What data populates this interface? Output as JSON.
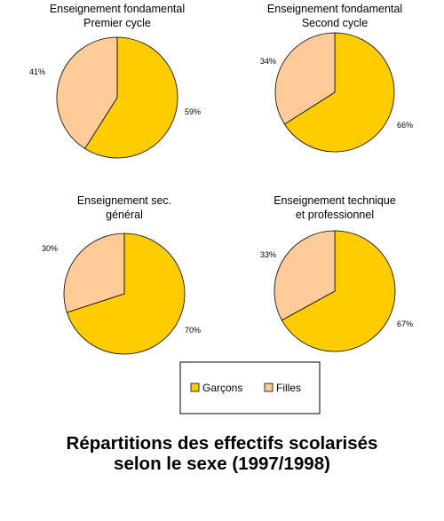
{
  "chart_data": [
    {
      "type": "pie",
      "title": [
        "Enseignement fondamental",
        "Premier cycle"
      ],
      "categories": [
        "Garçons",
        "Filles"
      ],
      "values": [
        59,
        41
      ],
      "labels": [
        "59%",
        "41%"
      ],
      "colors": [
        "#FFCC00",
        "#FFCC99"
      ]
    },
    {
      "type": "pie",
      "title": [
        "Enseignement fondamental",
        "Second cycle"
      ],
      "categories": [
        "Garçons",
        "Filles"
      ],
      "values": [
        66,
        34
      ],
      "labels": [
        "66%",
        "34%"
      ],
      "colors": [
        "#FFCC00",
        "#FFCC99"
      ]
    },
    {
      "type": "pie",
      "title": [
        "Enseignement sec.",
        "général"
      ],
      "categories": [
        "Garçons",
        "Filles"
      ],
      "values": [
        70,
        30
      ],
      "labels": [
        "70%",
        "30%"
      ],
      "colors": [
        "#FFCC00",
        "#FFCC99"
      ]
    },
    {
      "type": "pie",
      "title": [
        "Enseignement technique",
        "et professionnel"
      ],
      "categories": [
        "Garçons",
        "Filles"
      ],
      "values": [
        67,
        33
      ],
      "labels": [
        "67%",
        "33%"
      ],
      "colors": [
        "#FFCC00",
        "#FFCC99"
      ]
    }
  ],
  "legend": {
    "placement": "bottom-center",
    "items": [
      {
        "label": "Garçons",
        "color": "#FFCC00"
      },
      {
        "label": "Filles",
        "color": "#FFCC99"
      }
    ]
  },
  "caption": {
    "line1": "Répartitions des effectifs scolarisés",
    "line2": "selon le sexe (1997/1998)"
  }
}
